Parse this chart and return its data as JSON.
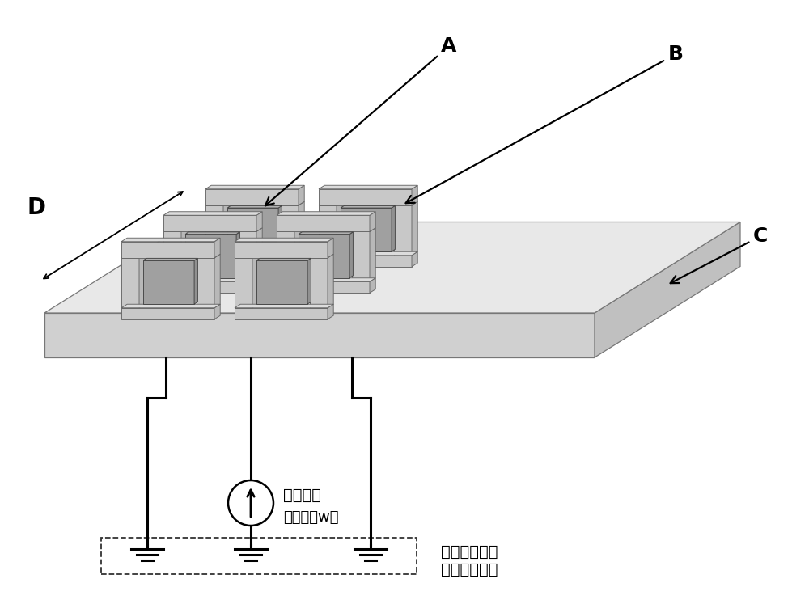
{
  "bg_color": "#ffffff",
  "label_A": "A",
  "label_B": "B",
  "label_C": "C",
  "label_D": "D",
  "text_signal_1": "输入信号",
  "text_signal_2": "（角频率w）",
  "text_ground_1": "接地，使整个",
  "text_ground_2": "结构构成回路",
  "col_base_top": "#e8e8e8",
  "col_base_front": "#d0d0d0",
  "col_base_right": "#c0c0c0",
  "col_mems_top": "#dcdcdc",
  "col_mems_front": "#c8c8c8",
  "col_mems_right": "#b8b8b8",
  "col_plate_top": "#b0b0b0",
  "col_plate_front": "#a0a0a0",
  "col_plate_right": "#909090",
  "col_edge": "#555555",
  "col_line": "#000000",
  "fs_label": 18,
  "fs_text": 14
}
